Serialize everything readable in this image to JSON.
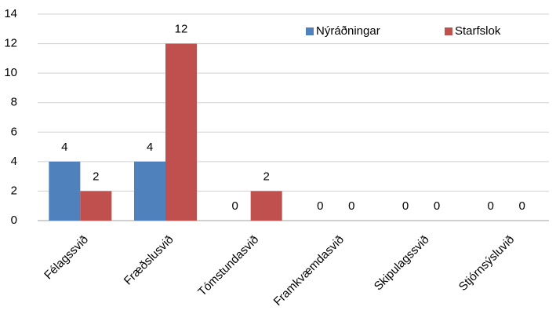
{
  "chart_data": {
    "type": "bar",
    "categories": [
      "Félagssvið",
      "Fræðslusvið",
      "Tómstundasvið",
      "Framkvæmdasvið",
      "Skipulagssvið",
      "Stjórnsýsluvið"
    ],
    "series": [
      {
        "name": "Nýráðningar",
        "color": "#4f81bd",
        "values": [
          4,
          4,
          0,
          0,
          0,
          0
        ]
      },
      {
        "name": "Starfslok",
        "color": "#c0504d",
        "values": [
          2,
          12,
          2,
          0,
          0,
          0
        ]
      }
    ],
    "ylim": [
      0,
      14
    ],
    "yticks": [
      0,
      2,
      4,
      6,
      8,
      10,
      12,
      14
    ],
    "grid": true,
    "legend": "top-right"
  }
}
